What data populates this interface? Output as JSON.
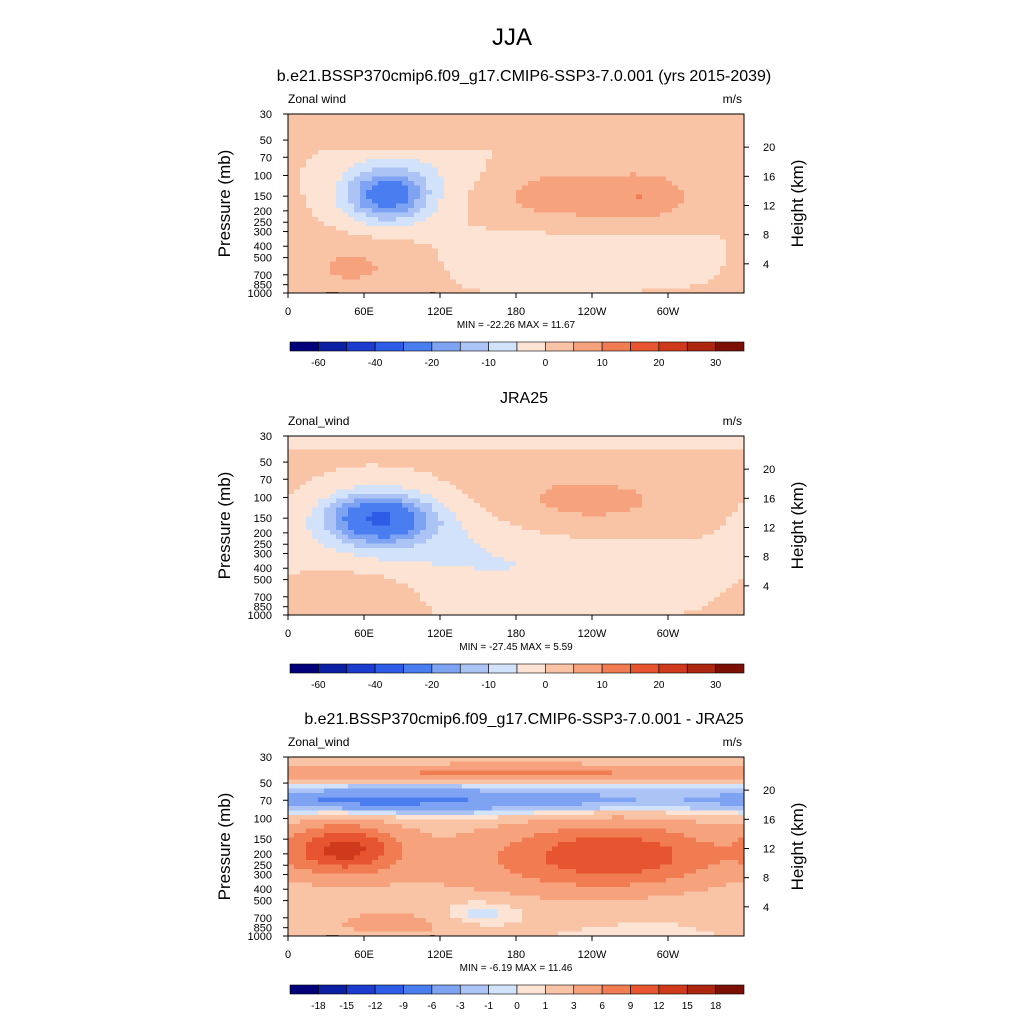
{
  "main_title": "JJA",
  "chart_data": [
    {
      "type": "heatmap",
      "title": "b.e21.BSSP370cmip6.f09_g17.CMIP6-SSP3-7.0.001 (yrs 2015-2039)",
      "variable_label": "Zonal wind",
      "units_label": "m/s",
      "ylabel": "Pressure (mb)",
      "y2label": "Height (km)",
      "xticks": [
        "0",
        "60E",
        "120E",
        "180",
        "120W",
        "60W"
      ],
      "yticks": [
        "30",
        "50",
        "70",
        "100",
        "150",
        "200",
        "250",
        "300",
        "400",
        "500",
        "700",
        "850",
        "1000"
      ],
      "y2ticks": [
        "20",
        "16",
        "12",
        "8",
        "4"
      ],
      "stats": "MIN = -22.26  MAX =  11.67",
      "min": -22.26,
      "max": 11.67,
      "colorbar_labels": [
        "-60",
        "-40",
        "-20",
        "-10",
        "0",
        "10",
        "20",
        "30"
      ],
      "topography": true
    },
    {
      "type": "heatmap",
      "title": "JRA25",
      "variable_label": "Zonal_wind",
      "units_label": "m/s",
      "ylabel": "Pressure (mb)",
      "y2label": "Height (km)",
      "xticks": [
        "0",
        "60E",
        "120E",
        "180",
        "120W",
        "60W"
      ],
      "yticks": [
        "30",
        "50",
        "70",
        "100",
        "150",
        "200",
        "250",
        "300",
        "400",
        "500",
        "700",
        "850",
        "1000"
      ],
      "y2ticks": [
        "20",
        "16",
        "12",
        "8",
        "4"
      ],
      "stats": "MIN = -27.45  MAX =   5.59",
      "min": -27.45,
      "max": 5.59,
      "colorbar_labels": [
        "-60",
        "-40",
        "-20",
        "-10",
        "0",
        "10",
        "20",
        "30"
      ],
      "topography": false
    },
    {
      "type": "heatmap",
      "title": "b.e21.BSSP370cmip6.f09_g17.CMIP6-SSP3-7.0.001 - JRA25",
      "variable_label": "Zonal_wind",
      "units_label": "m/s",
      "ylabel": "Pressure (mb)",
      "y2label": "Height (km)",
      "xticks": [
        "0",
        "60E",
        "120E",
        "180",
        "120W",
        "60W"
      ],
      "yticks": [
        "30",
        "50",
        "70",
        "100",
        "150",
        "200",
        "250",
        "300",
        "400",
        "500",
        "700",
        "850",
        "1000"
      ],
      "y2ticks": [
        "20",
        "16",
        "12",
        "8",
        "4"
      ],
      "stats": "MIN =  -6.19  MAX =  11.46",
      "min": -6.19,
      "max": 11.46,
      "colorbar_labels": [
        "-18",
        "-15",
        "-12",
        "-9",
        "-6",
        "-3",
        "-1",
        "0",
        "1",
        "3",
        "6",
        "9",
        "12",
        "15",
        "18"
      ],
      "topography": true
    }
  ]
}
